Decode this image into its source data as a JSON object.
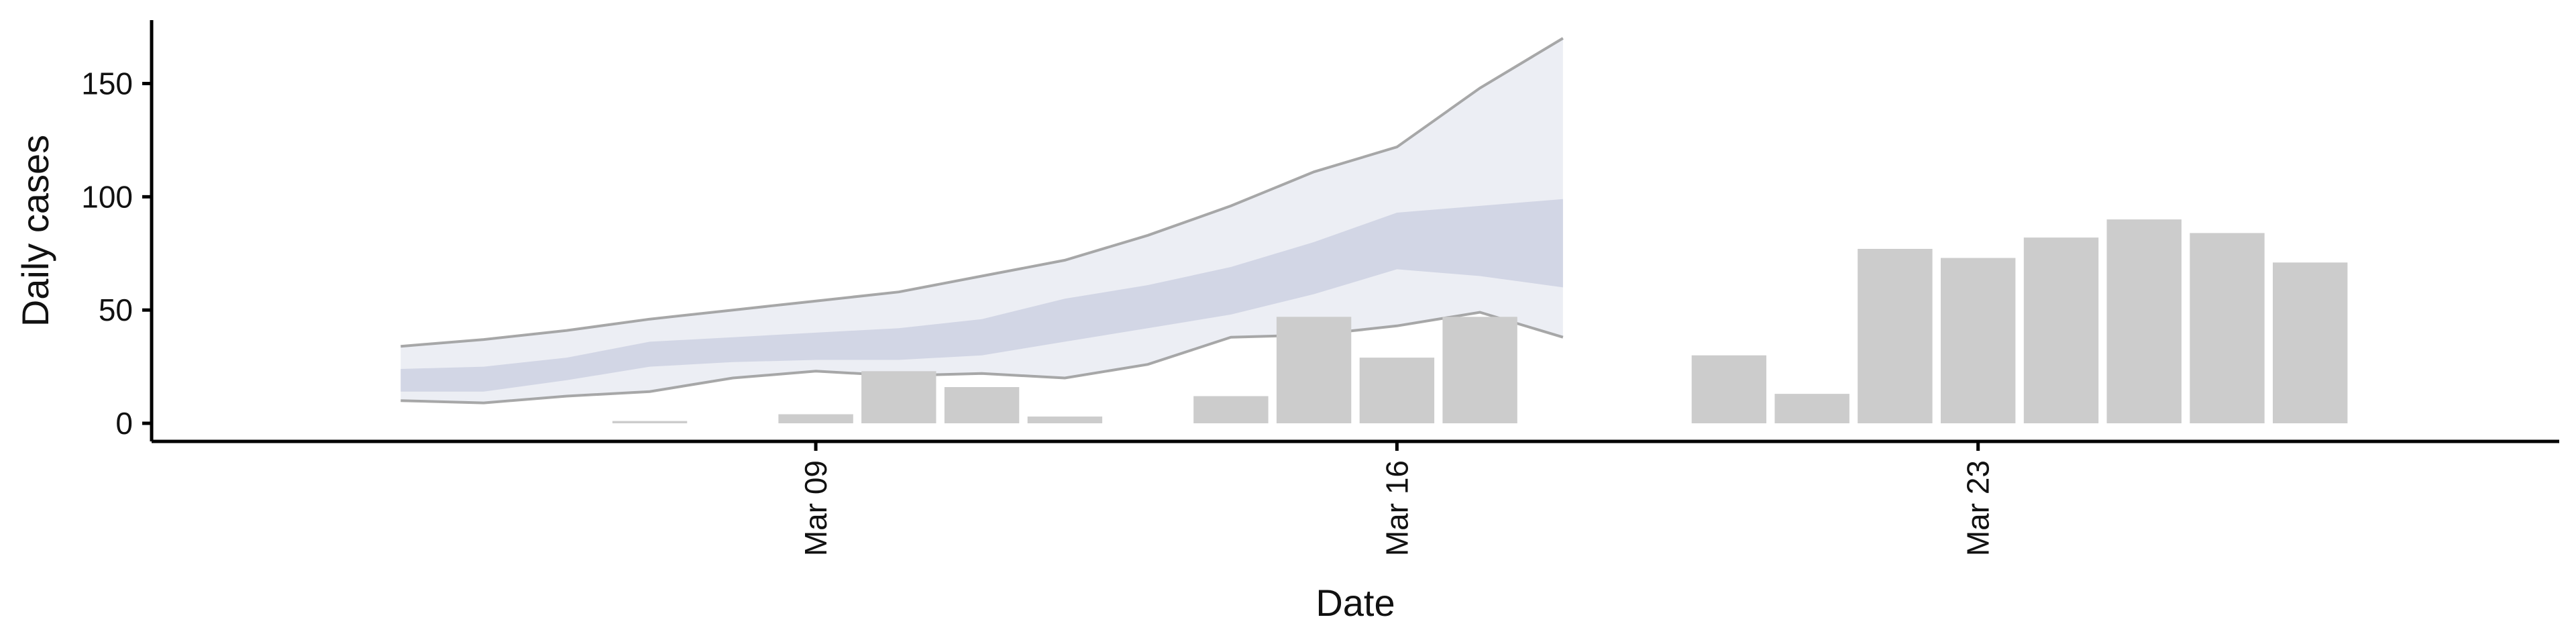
{
  "chart_data": {
    "type": "bar",
    "xlabel": "Date",
    "ylabel": "Daily cases",
    "ylim": [
      -8,
      178
    ],
    "y_ticks": [
      0,
      50,
      100,
      150
    ],
    "x_range": [
      "2020-03-01",
      "2020-03-30"
    ],
    "x_ticks": [
      {
        "date": "2020-03-09",
        "label": "Mar 09"
      },
      {
        "date": "2020-03-16",
        "label": "Mar 16"
      },
      {
        "date": "2020-03-23",
        "label": "Mar 23"
      }
    ],
    "bars": [
      {
        "date": "2020-03-07",
        "value": 1
      },
      {
        "date": "2020-03-09",
        "value": 4
      },
      {
        "date": "2020-03-10",
        "value": 23
      },
      {
        "date": "2020-03-11",
        "value": 16
      },
      {
        "date": "2020-03-12",
        "value": 3
      },
      {
        "date": "2020-03-14",
        "value": 12
      },
      {
        "date": "2020-03-15",
        "value": 47
      },
      {
        "date": "2020-03-16",
        "value": 29
      },
      {
        "date": "2020-03-17",
        "value": 47
      },
      {
        "date": "2020-03-20",
        "value": 30
      },
      {
        "date": "2020-03-21",
        "value": 13
      },
      {
        "date": "2020-03-22",
        "value": 77
      },
      {
        "date": "2020-03-23",
        "value": 73
      },
      {
        "date": "2020-03-24",
        "value": 82
      },
      {
        "date": "2020-03-25",
        "value": 90
      },
      {
        "date": "2020-03-26",
        "value": 84
      },
      {
        "date": "2020-03-27",
        "value": 71
      }
    ],
    "ribbon_outer": [
      {
        "date": "2020-03-04",
        "lower": 10,
        "upper": 34
      },
      {
        "date": "2020-03-05",
        "lower": 9,
        "upper": 37
      },
      {
        "date": "2020-03-06",
        "lower": 12,
        "upper": 41
      },
      {
        "date": "2020-03-07",
        "lower": 14,
        "upper": 46
      },
      {
        "date": "2020-03-08",
        "lower": 20,
        "upper": 50
      },
      {
        "date": "2020-03-09",
        "lower": 23,
        "upper": 54
      },
      {
        "date": "2020-03-10",
        "lower": 21,
        "upper": 58
      },
      {
        "date": "2020-03-11",
        "lower": 22,
        "upper": 65
      },
      {
        "date": "2020-03-12",
        "lower": 20,
        "upper": 72
      },
      {
        "date": "2020-03-13",
        "lower": 26,
        "upper": 83
      },
      {
        "date": "2020-03-14",
        "lower": 38,
        "upper": 96
      },
      {
        "date": "2020-03-15",
        "lower": 39,
        "upper": 111
      },
      {
        "date": "2020-03-16",
        "lower": 43,
        "upper": 122
      },
      {
        "date": "2020-03-17",
        "lower": 49,
        "upper": 148
      },
      {
        "date": "2020-03-18",
        "lower": 38,
        "upper": 170
      }
    ],
    "ribbon_inner": [
      {
        "date": "2020-03-04",
        "lower": 14,
        "upper": 24
      },
      {
        "date": "2020-03-05",
        "lower": 14,
        "upper": 25
      },
      {
        "date": "2020-03-06",
        "lower": 19,
        "upper": 29
      },
      {
        "date": "2020-03-07",
        "lower": 25,
        "upper": 36
      },
      {
        "date": "2020-03-08",
        "lower": 27,
        "upper": 38
      },
      {
        "date": "2020-03-09",
        "lower": 28,
        "upper": 40
      },
      {
        "date": "2020-03-10",
        "lower": 28,
        "upper": 42
      },
      {
        "date": "2020-03-11",
        "lower": 30,
        "upper": 46
      },
      {
        "date": "2020-03-12",
        "lower": 36,
        "upper": 55
      },
      {
        "date": "2020-03-13",
        "lower": 42,
        "upper": 61
      },
      {
        "date": "2020-03-14",
        "lower": 48,
        "upper": 69
      },
      {
        "date": "2020-03-15",
        "lower": 57,
        "upper": 80
      },
      {
        "date": "2020-03-16",
        "lower": 68,
        "upper": 93
      },
      {
        "date": "2020-03-17",
        "lower": 65,
        "upper": 96
      },
      {
        "date": "2020-03-18",
        "lower": 60,
        "upper": 99
      }
    ],
    "grid": false,
    "legend": "none",
    "colors": {
      "bar": "#cccccc",
      "ribbon_outer": "#e6e8f0",
      "ribbon_inner": "#c9cee0",
      "ribbon_edge": "#999999",
      "axis": "#000000"
    }
  }
}
